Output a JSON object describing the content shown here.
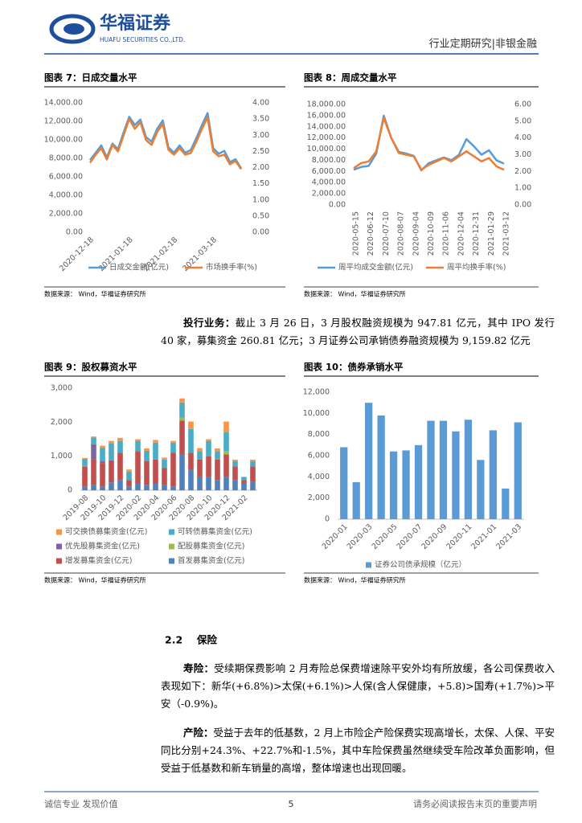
{
  "header": {
    "logo": "华福证券",
    "logo_en": "HUAFU SECURITIES CO.,LTD.",
    "report_type": "行业定期研究|非银金融"
  },
  "chart_data": [
    {
      "type": "line",
      "title": "图表 7：日成交量水平",
      "source": "数据来源：   Wind，华福证券研究所",
      "categories": [
        "2020-12-18",
        null,
        null,
        null,
        null,
        null,
        null,
        "2021-01-18",
        null,
        null,
        null,
        null,
        null,
        null,
        null,
        "2021-02-18",
        null,
        null,
        null,
        null,
        null,
        null,
        "2021-03-18",
        null,
        null,
        null,
        null,
        null
      ],
      "series": [
        {
          "name": "日成交金额(亿元)",
          "color": "#5b9bd5",
          "values": [
            7800,
            8600,
            9400,
            8100,
            9600,
            9000,
            10800,
            12500,
            11600,
            12200,
            10300,
            9800,
            11200,
            12100,
            9200,
            8600,
            9400,
            8600,
            8900,
            10200,
            11600,
            12900,
            9100,
            8500,
            8800,
            7600,
            7900,
            6900
          ]
        },
        {
          "name": "市场换手率(%)",
          "color": "#ed7d31",
          "axis": "y2",
          "values": [
            2.15,
            2.4,
            2.6,
            2.25,
            2.7,
            2.5,
            3.0,
            3.5,
            3.2,
            3.4,
            2.85,
            2.7,
            3.1,
            3.35,
            2.55,
            2.4,
            2.6,
            2.4,
            2.45,
            2.8,
            3.2,
            3.55,
            2.5,
            2.35,
            2.4,
            2.1,
            2.2,
            1.95
          ]
        }
      ],
      "ylim": [
        0,
        14000
      ],
      "yticks": [
        {
          "value": 0,
          "label": "0.00"
        },
        {
          "value": 2000,
          "label": "2,000.00"
        },
        {
          "value": 4000,
          "label": "4,000.00"
        },
        {
          "value": 6000,
          "label": "6,000.00"
        },
        {
          "value": 8000,
          "label": "8,000.00"
        },
        {
          "value": 10000,
          "label": "10,000.00"
        },
        {
          "value": 12000,
          "label": "12,000.00"
        },
        {
          "value": 14000,
          "label": "14,000.00"
        }
      ],
      "y2lim": [
        0,
        4
      ],
      "y2ticks": [
        {
          "value": 0,
          "label": "0.00"
        },
        {
          "value": 0.5,
          "label": "0.50"
        },
        {
          "value": 1,
          "label": "1.00"
        },
        {
          "value": 1.5,
          "label": "1.50"
        },
        {
          "value": 2,
          "label": "2.00"
        },
        {
          "value": 2.5,
          "label": "2.50"
        },
        {
          "value": 3,
          "label": "3.00"
        },
        {
          "value": 3.5,
          "label": "3.50"
        },
        {
          "value": 4,
          "label": "4.00"
        }
      ],
      "grid": false,
      "legend": "bottom"
    },
    {
      "type": "line",
      "title": "图表 8：周成交量水平",
      "source": "数据来源：   Wind，华福证券研究所",
      "categories": [
        "2020-05-15",
        null,
        "2020-06-12",
        null,
        "2020-07-10",
        null,
        "2020-08-07",
        null,
        "2020-09-04",
        null,
        "2020-10-09",
        null,
        "2020-11-06",
        null,
        "2020-12-04",
        null,
        "2020-12-31",
        null,
        "2021-01-29",
        null,
        "2021-03-12"
      ],
      "series": [
        {
          "name": "周平均成交金额(亿元)",
          "color": "#5b9bd5",
          "values": [
            6300,
            6800,
            7000,
            9200,
            16000,
            12000,
            9500,
            9200,
            8800,
            6200,
            7500,
            8000,
            8500,
            8000,
            9000,
            11800,
            10500,
            9000,
            9800,
            8000,
            7400
          ]
        },
        {
          "name": "周平均换手率(%)",
          "color": "#ed7d31",
          "axis": "y2",
          "values": [
            2.2,
            2.5,
            2.6,
            3.2,
            5.2,
            4.0,
            3.1,
            3.0,
            2.9,
            2.1,
            2.4,
            2.6,
            2.8,
            2.6,
            2.9,
            3.2,
            2.9,
            2.6,
            2.8,
            2.3,
            2.1
          ]
        }
      ],
      "ylim": [
        0,
        18000
      ],
      "yticks": [
        {
          "value": 0,
          "label": "0.00"
        },
        {
          "value": 2000,
          "label": "2,000.00"
        },
        {
          "value": 4000,
          "label": "4,000.00"
        },
        {
          "value": 6000,
          "label": "6,000.00"
        },
        {
          "value": 8000,
          "label": "8,000.00"
        },
        {
          "value": 10000,
          "label": "10,000.00"
        },
        {
          "value": 12000,
          "label": "12,000.00"
        },
        {
          "value": 14000,
          "label": "14,000.00"
        },
        {
          "value": 16000,
          "label": "16,000.00"
        },
        {
          "value": 18000,
          "label": "18,000.00"
        }
      ],
      "y2lim": [
        0,
        6
      ],
      "y2ticks": [
        {
          "value": 0,
          "label": "0.00"
        },
        {
          "value": 1,
          "label": "1.00"
        },
        {
          "value": 2,
          "label": "2.00"
        },
        {
          "value": 3,
          "label": "3.00"
        },
        {
          "value": 4,
          "label": "4.00"
        },
        {
          "value": 5,
          "label": "5.00"
        },
        {
          "value": 6,
          "label": "6.00"
        }
      ],
      "grid": false,
      "legend": "bottom"
    },
    {
      "type": "bar",
      "stacked": true,
      "title": "图表 9：股权募资水平",
      "source": "数据来源：   Wind，华福证券研究所",
      "categories": [
        "2019-08",
        null,
        "2019-10",
        null,
        "2019-12",
        null,
        "2020-02",
        null,
        "2020-04",
        null,
        "2020-06",
        null,
        "2020-08",
        null,
        "2020-10",
        null,
        "2020-12",
        null,
        "2021-02",
        null
      ],
      "series": [
        {
          "name": "可交换债募集资金(亿元)",
          "color": "#f79646",
          "values": [
            30,
            30,
            60,
            70,
            90,
            60,
            50,
            70,
            80,
            60,
            50,
            120,
            220,
            90,
            50,
            80,
            320,
            50,
            20,
            50
          ]
        },
        {
          "name": "可转债募集资金(亿元)",
          "color": "#4bacc6",
          "values": [
            200,
            200,
            400,
            500,
            350,
            250,
            300,
            300,
            500,
            250,
            300,
            450,
            700,
            250,
            450,
            250,
            550,
            150,
            80,
            150
          ]
        },
        {
          "name": "优先股募集资金(亿元)",
          "color": "#8064a2",
          "values": [
            0,
            450,
            50,
            0,
            0,
            0,
            0,
            0,
            0,
            0,
            0,
            0,
            0,
            0,
            0,
            0,
            0,
            0,
            0,
            0
          ]
        },
        {
          "name": "配股募集资金(亿元)",
          "color": "#9bbb59",
          "values": [
            20,
            0,
            0,
            0,
            0,
            0,
            0,
            0,
            0,
            0,
            0,
            80,
            0,
            0,
            0,
            0,
            100,
            0,
            0,
            0
          ]
        },
        {
          "name": "增发募集资金(亿元)",
          "color": "#c0504d",
          "values": [
            600,
            750,
            700,
            650,
            800,
            200,
            950,
            700,
            700,
            500,
            1000,
            1000,
            500,
            500,
            600,
            600,
            650,
            400,
            100,
            450
          ]
        },
        {
          "name": "首发募集资金(亿元)",
          "color": "#4f81bd",
          "values": [
            100,
            150,
            100,
            230,
            300,
            100,
            200,
            160,
            200,
            150,
            100,
            1050,
            600,
            400,
            400,
            300,
            400,
            300,
            200,
            250
          ]
        }
      ],
      "ylim": [
        0,
        3000
      ],
      "yticks": [
        0,
        {
          "value": 1000,
          "label": "1,000"
        },
        {
          "value": 2000,
          "label": "2,000"
        },
        {
          "value": 3000,
          "label": "3,000"
        }
      ],
      "grid": false,
      "legend": "bottom"
    },
    {
      "type": "bar",
      "title": "图表 10：债券承销水平",
      "source": "数据来源：   Wind，华福证券研究所",
      "categories": [
        "2020-01",
        null,
        "2020-03",
        null,
        "2020-05",
        null,
        "2020-07",
        null,
        "2020-09",
        null,
        "2020-11",
        null,
        "2021-01",
        null,
        "2021-03"
      ],
      "series": [
        {
          "name": "证券公司债承规模（亿元）",
          "color": "#5b9bd5",
          "values": [
            6800,
            3500,
            11000,
            9800,
            6400,
            6500,
            7000,
            9300,
            9300,
            8300,
            9400,
            5600,
            8400,
            2900,
            9150
          ]
        }
      ],
      "ylim": [
        0,
        12000
      ],
      "yticks": [
        0,
        {
          "value": 2000,
          "label": "2,000"
        },
        {
          "value": 4000,
          "label": "4,000"
        },
        {
          "value": 6000,
          "label": "6,000"
        },
        {
          "value": 8000,
          "label": "8,000"
        },
        {
          "value": 10000,
          "label": "10,000"
        },
        {
          "value": 12000,
          "label": "12,000"
        }
      ],
      "grid": false,
      "legend": "bottom"
    }
  ],
  "ib_paragraph": {
    "lead": "投行业务：",
    "text": "截止 3 月 26 日，3 月股权融资规模为 947.81 亿元，其中 IPO 发行 40 家，募集资金 260.81 亿元；3 月证券公司承销债券融资规模为 9,159.82 亿元"
  },
  "section": {
    "number": "2.2",
    "title": "保险"
  },
  "paragraphs": [
    {
      "lead": "寿险：",
      "text": "受续期保费影响 2 月寿险总保费增速除平安外均有所放缓，各公司保费收入表现如下：新华(+6.8%)>太保(+6.1%)>人保(含人保健康，+5.8)>国寿(+1.7%)>平安（-0.9%)。"
    },
    {
      "lead": "产险：",
      "text": "受益于去年的低基数，2 月上市险企产险保费实现高增长，太保、人保、平安同比分别+24.3%、+22.7%和-1.5%，其中车险保费虽然继续受车险改革负面影响，但受益于低基数和新车销量的高增，整体增速也出现回暖。"
    }
  ],
  "footer": {
    "left": "诚信专业  发现价值",
    "page": "5",
    "right": "请务必阅读报告末页的重要声明"
  }
}
